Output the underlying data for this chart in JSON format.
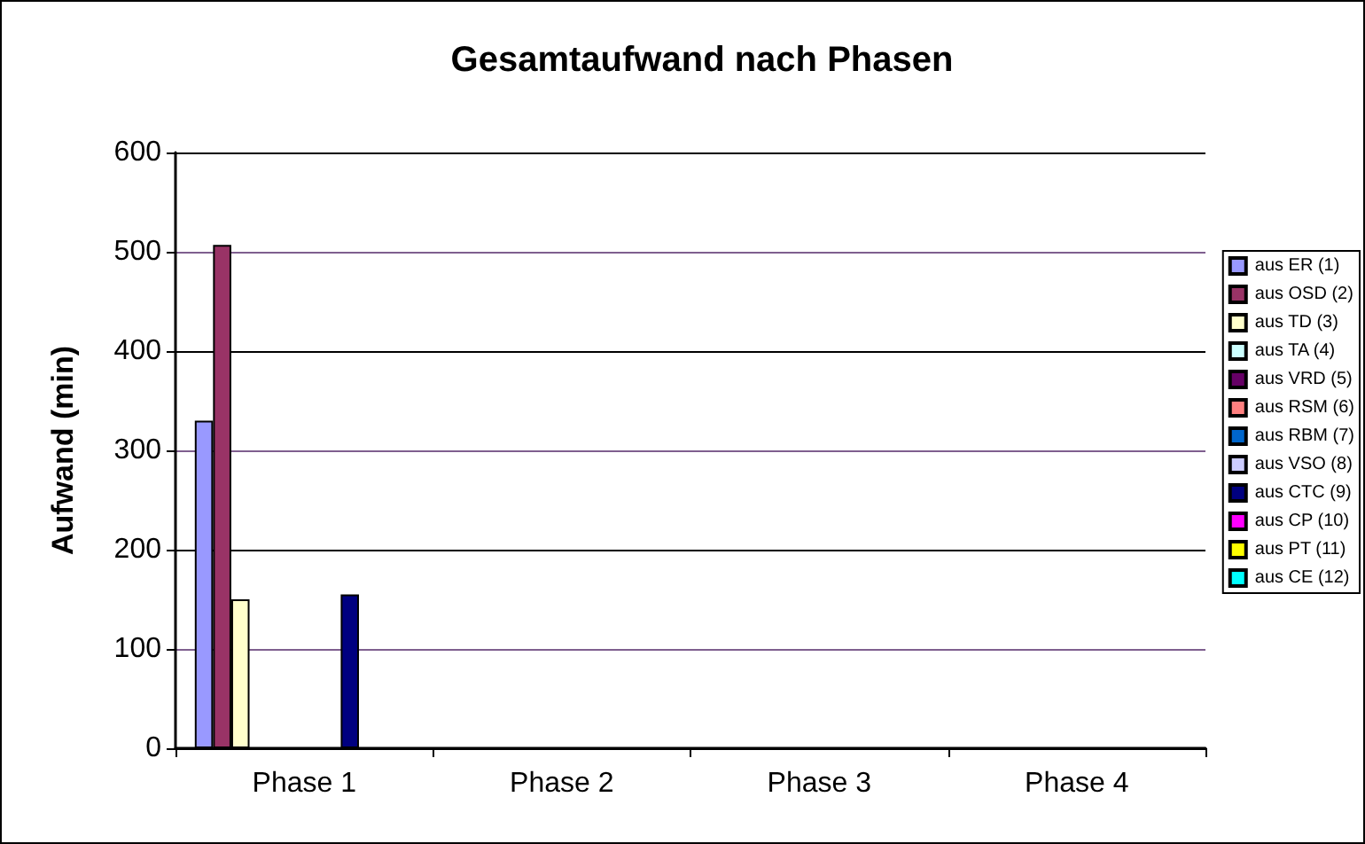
{
  "chart_data": {
    "type": "bar",
    "title": "Gesamtaufwand nach Phasen",
    "ylabel": "Aufwand (min)",
    "categories": [
      "Phase 1",
      "Phase 2",
      "Phase 3",
      "Phase 4"
    ],
    "series": [
      {
        "name": "aus ER (1)",
        "color": "#9999ff",
        "values": [
          330,
          0,
          0,
          0
        ]
      },
      {
        "name": "aus OSD (2)",
        "color": "#993366",
        "values": [
          507,
          0,
          0,
          0
        ]
      },
      {
        "name": "aus TD (3)",
        "color": "#ffffcc",
        "values": [
          150,
          0,
          0,
          0
        ]
      },
      {
        "name": "aus TA (4)",
        "color": "#ccffff",
        "values": [
          0,
          0,
          0,
          0
        ]
      },
      {
        "name": "aus VRD (5)",
        "color": "#660066",
        "values": [
          0,
          0,
          0,
          0
        ]
      },
      {
        "name": "aus RSM (6)",
        "color": "#ff8080",
        "values": [
          0,
          0,
          0,
          0
        ]
      },
      {
        "name": "aus RBM (7)",
        "color": "#0066cc",
        "values": [
          0,
          0,
          0,
          0
        ]
      },
      {
        "name": "aus VSO (8)",
        "color": "#ccccff",
        "values": [
          0,
          0,
          0,
          0
        ]
      },
      {
        "name": "aus CTC (9)",
        "color": "#000080",
        "values": [
          155,
          0,
          0,
          0
        ]
      },
      {
        "name": "aus CP (10)",
        "color": "#ff00ff",
        "values": [
          0,
          0,
          0,
          0
        ]
      },
      {
        "name": "aus PT (11)",
        "color": "#ffff00",
        "values": [
          0,
          0,
          0,
          0
        ]
      },
      {
        "name": "aus CE (12)",
        "color": "#00ffff",
        "values": [
          0,
          0,
          0,
          0
        ]
      }
    ],
    "ylim": [
      0,
      600
    ],
    "yticks": [
      0,
      100,
      200,
      300,
      400,
      500,
      600
    ],
    "grid": "y",
    "legend": "right"
  }
}
